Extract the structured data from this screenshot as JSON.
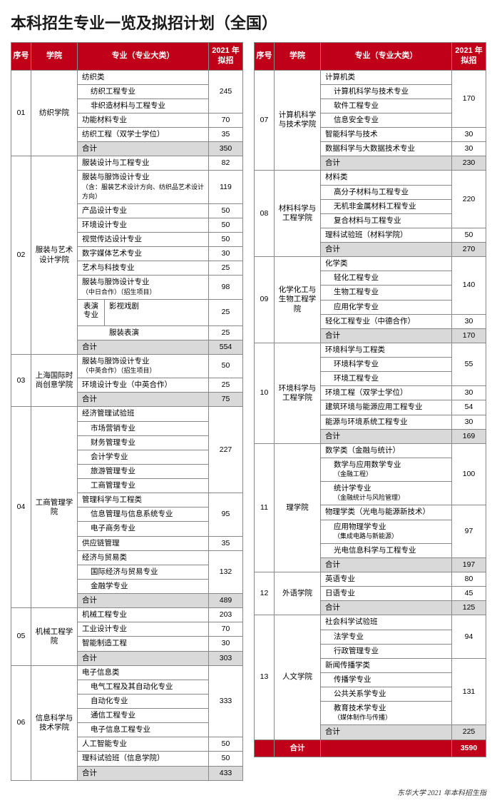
{
  "title": "本科招生专业一览及拟招计划（全国）",
  "columns": {
    "seq": "序号",
    "college": "学院",
    "major": "专业（专业大类）",
    "num": "2021 年拟招"
  },
  "footer_text": "东华大学 2021 年本科招生指",
  "grand_total": {
    "label": "合计",
    "value": "3590"
  },
  "colors": {
    "header_bg": "#c00018",
    "header_fg": "#ffffff",
    "subtotal_bg": "#d9d9d9",
    "border": "#888888"
  },
  "left": [
    {
      "seq": "01",
      "college": "纺织学院",
      "subtotal": "350",
      "groups": [
        {
          "num": "245",
          "majors": [
            "纺织类",
            "纺织工程专业",
            "非织造材料与工程专业"
          ],
          "indentFrom": 1
        },
        {
          "num": "70",
          "majors": [
            "功能材料专业"
          ]
        },
        {
          "num": "35",
          "majors": [
            "纺织工程（双学士学位）"
          ]
        }
      ]
    },
    {
      "seq": "02",
      "college": "服装与艺术设计学院",
      "subtotal": "554",
      "groups": [
        {
          "num": "82",
          "majors": [
            "服装设计与工程专业"
          ]
        },
        {
          "num": "119",
          "majors": [
            "服装与服饰设计专业<br><span class=\"small-note\">（含：服装艺术设计方向、纺织品艺术设计方向）</span>"
          ]
        },
        {
          "num": "50",
          "majors": [
            "产品设计专业"
          ]
        },
        {
          "num": "50",
          "majors": [
            "环境设计专业"
          ]
        },
        {
          "num": "50",
          "majors": [
            "视觉传达设计专业"
          ]
        },
        {
          "num": "30",
          "majors": [
            "数字媒体艺术专业"
          ]
        },
        {
          "num": "25",
          "majors": [
            "艺术与科技专业"
          ]
        },
        {
          "num": "98",
          "majors": [
            "服装与服饰设计专业<br><span class=\"small-note\">（中日合作）（招生项目）</span>"
          ]
        },
        {
          "split": true,
          "leftLabel": "表演<br>专业",
          "rows": [
            {
              "name": "影视戏剧",
              "num": "25"
            },
            {
              "name": "服装表演",
              "num": "25"
            }
          ]
        }
      ]
    },
    {
      "seq": "03",
      "college": "上海国际时尚创意学院",
      "subtotal": "75",
      "groups": [
        {
          "num": "50",
          "majors": [
            "服装与服饰设计专业<br><span class=\"small-note\">（中英合作）（招生项目）</span>"
          ]
        },
        {
          "num": "25",
          "majors": [
            "环境设计专业（中英合作）"
          ]
        }
      ]
    },
    {
      "seq": "04",
      "college": "工商管理学院",
      "subtotal": "489",
      "groups": [
        {
          "num": "227",
          "majors": [
            "经济管理试验班",
            "市场营销专业",
            "财务管理专业",
            "会计学专业",
            "旅游管理专业",
            "工商管理专业"
          ],
          "indentFrom": 1
        },
        {
          "num": "95",
          "majors": [
            "管理科学与工程类",
            "信息管理与信息系统专业",
            "电子商务专业"
          ],
          "indentFrom": 1
        },
        {
          "num": "35",
          "majors": [
            "供应链管理"
          ]
        },
        {
          "num": "132",
          "majors": [
            "经济与贸易类",
            "国际经济与贸易专业",
            "金融学专业"
          ],
          "indentFrom": 1
        }
      ]
    },
    {
      "seq": "05",
      "college": "机械工程学院",
      "subtotal": "303",
      "groups": [
        {
          "num": "203",
          "majors": [
            "机械工程专业"
          ]
        },
        {
          "num": "70",
          "majors": [
            "工业设计专业"
          ]
        },
        {
          "num": "30",
          "majors": [
            "智能制造工程"
          ]
        }
      ]
    },
    {
      "seq": "06",
      "college": "信息科学与技术学院",
      "subtotal": "433",
      "groups": [
        {
          "num": "333",
          "majors": [
            "电子信息类",
            "电气工程及其自动化专业",
            "自动化专业",
            "通信工程专业",
            "电子信息工程专业"
          ],
          "indentFrom": 1
        },
        {
          "num": "50",
          "majors": [
            "人工智能专业"
          ]
        },
        {
          "num": "50",
          "majors": [
            "理科试验班（信息学院）"
          ]
        }
      ]
    }
  ],
  "right": [
    {
      "seq": "07",
      "college": "计算机科学与技术学院",
      "subtotal": "230",
      "groups": [
        {
          "num": "170",
          "majors": [
            "计算机类",
            "计算机科学与技术专业",
            "软件工程专业",
            "信息安全专业"
          ],
          "indentFrom": 1
        },
        {
          "num": "30",
          "majors": [
            "智能科学与技术"
          ]
        },
        {
          "num": "30",
          "majors": [
            "数据科学与大数据技术专业"
          ]
        }
      ]
    },
    {
      "seq": "08",
      "college": "材料科学与工程学院",
      "subtotal": "270",
      "groups": [
        {
          "num": "220",
          "majors": [
            "材料类",
            "高分子材料与工程专业",
            "无机非金属材料工程专业",
            "复合材料与工程专业"
          ],
          "indentFrom": 1
        },
        {
          "num": "50",
          "majors": [
            "理科试验班（材料学院）"
          ]
        }
      ]
    },
    {
      "seq": "09",
      "college": "化学化工与生物工程学院",
      "subtotal": "170",
      "groups": [
        {
          "num": "140",
          "majors": [
            "化学类",
            "轻化工程专业",
            "生物工程专业",
            "应用化学专业"
          ],
          "indentFrom": 1
        },
        {
          "num": "30",
          "majors": [
            "轻化工程专业（中德合作）"
          ]
        }
      ]
    },
    {
      "seq": "10",
      "college": "环境科学与工程学院",
      "subtotal": "169",
      "groups": [
        {
          "num": "55",
          "majors": [
            "环境科学与工程类",
            "环境科学专业",
            "环境工程专业"
          ],
          "indentFrom": 1
        },
        {
          "num": "30",
          "majors": [
            "环境工程（双学士学位）"
          ]
        },
        {
          "num": "54",
          "majors": [
            "建筑环境与能源应用工程专业"
          ]
        },
        {
          "num": "30",
          "majors": [
            "能源与环境系统工程专业"
          ]
        }
      ]
    },
    {
      "seq": "11",
      "college": "理学院",
      "subtotal": "197",
      "groups": [
        {
          "num": "100",
          "majors": [
            "数学类（金融与统计）",
            "数学与应用数学专业<br><span class=\"small-note\">（金融工程）</span>",
            "统计学专业<br><span class=\"small-note\">（金融统计与风险管理）</span>"
          ],
          "indentFrom": 1
        },
        {
          "num": "97",
          "majors": [
            "物理学类（光电与能源新技术）",
            "应用物理学专业<br><span class=\"small-note\">（集成电路与新能源）</span>",
            "光电信息科学与工程专业"
          ],
          "indentFrom": 1
        }
      ]
    },
    {
      "seq": "12",
      "college": "外语学院",
      "subtotal": "125",
      "groups": [
        {
          "num": "80",
          "majors": [
            "英语专业"
          ]
        },
        {
          "num": "45",
          "majors": [
            "日语专业"
          ]
        }
      ]
    },
    {
      "seq": "13",
      "college": "人文学院",
      "subtotal": "225",
      "groups": [
        {
          "num": "94",
          "majors": [
            "社会科学试验班",
            "法学专业",
            "行政管理专业"
          ],
          "indentFrom": 1
        },
        {
          "num": "131",
          "majors": [
            "新闻传播学类",
            "传播学专业",
            "公共关系学专业",
            "教育技术学专业<br><span class=\"small-note\">（媒体制作与传播）</span>"
          ],
          "indentFrom": 1
        }
      ]
    }
  ]
}
